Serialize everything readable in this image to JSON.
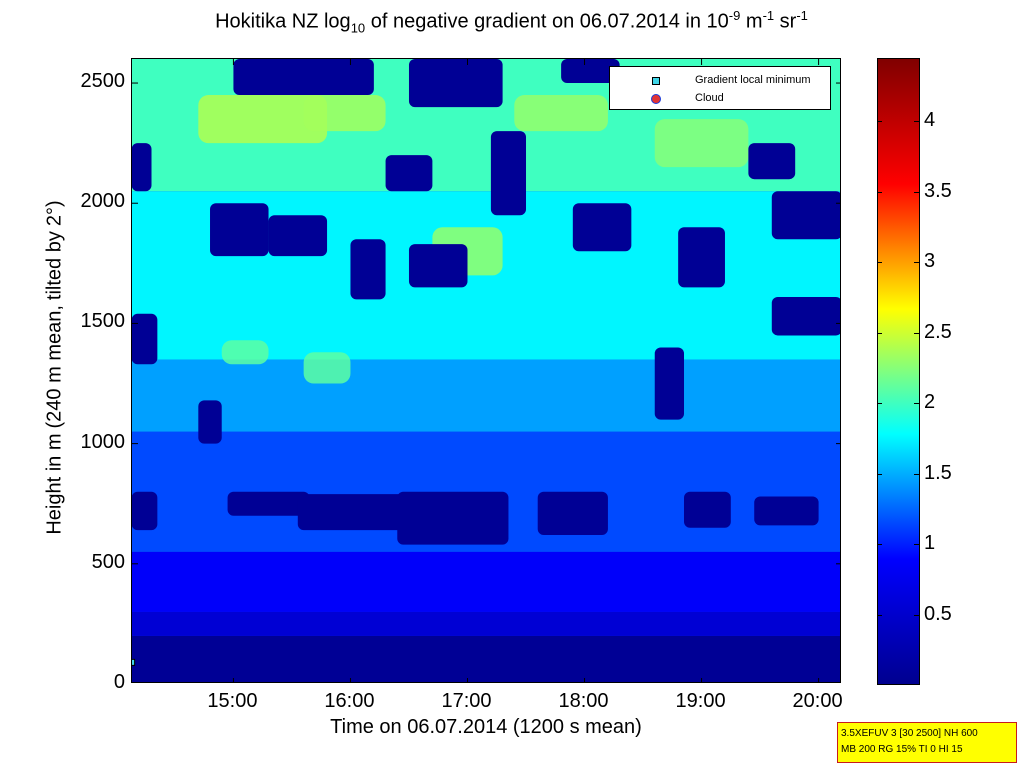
{
  "title": {
    "prefix": "Hokitika NZ log",
    "sub": "10",
    "middle": " of negative gradient on 06.07.2014 in 10",
    "sup1": "-9",
    "unit1": " m",
    "sup2": "-1",
    "unit2": " sr",
    "sup3": "-1"
  },
  "legend": {
    "items": [
      {
        "label": "Gradient local minimum",
        "color": "#3fd6e8"
      },
      {
        "label": "Cloud",
        "color": "#e23434"
      }
    ]
  },
  "infobox": {
    "line1": "3.5XEFUV 3 [30 2500] NH 600",
    "line2": "MB 200 RG 15% TI 0 HI 15"
  },
  "colors": {
    "colormap": [
      "#00008f",
      "#0000ff",
      "#00ffff",
      "#ffff00",
      "#ff0000",
      "#800000"
    ],
    "background": "#0b38e6"
  },
  "chart_data": {
    "type": "heatmap",
    "xlabel": "Time on 06.07.2014 (1200 s mean)",
    "ylabel_parts": [
      "Height in m",
      "(240 m mean,",
      "tilted by",
      "2°)"
    ],
    "xlim": [
      "14:08",
      "20:12"
    ],
    "xtick_labels": [
      "15:00",
      "16:00",
      "17:00",
      "18:00",
      "19:00",
      "20:00"
    ],
    "xtick_values": [
      15.0,
      16.0,
      17.0,
      18.0,
      19.0,
      20.0
    ],
    "ylim": [
      0,
      2600
    ],
    "ytick_values": [
      0,
      500,
      1000,
      1500,
      2000,
      2500
    ],
    "ytick_labels": [
      "0",
      "500",
      "1000",
      "1500",
      "2000",
      "2500"
    ],
    "colorbar": {
      "range": [
        0.0,
        4.45
      ],
      "tick_values": [
        0.5,
        1.0,
        1.5,
        2.0,
        2.5,
        3.0,
        3.5,
        4.0
      ],
      "tick_labels": [
        "0.5",
        "1",
        "1.5",
        "2",
        "2.5",
        "3",
        "3.5",
        "4"
      ]
    },
    "bands": [
      {
        "h0": 0,
        "h1": 200,
        "value": 0.05
      },
      {
        "h0": 200,
        "h1": 300,
        "value": 0.55
      },
      {
        "h0": 300,
        "h1": 550,
        "value": 0.85
      },
      {
        "h0": 550,
        "h1": 1050,
        "value": 1.15
      },
      {
        "h0": 1050,
        "h1": 1350,
        "value": 1.45
      },
      {
        "h0": 1350,
        "h1": 2050,
        "value": 1.75
      },
      {
        "h0": 2050,
        "h1": 2600,
        "value": 2.0
      }
    ],
    "low_patches": [
      {
        "t0": 14.13,
        "t1": 14.35,
        "h0": 640,
        "h1": 800,
        "value": 0.05
      },
      {
        "t0": 14.95,
        "t1": 15.65,
        "h0": 700,
        "h1": 800,
        "value": 0.05
      },
      {
        "t0": 15.55,
        "t1": 16.5,
        "h0": 640,
        "h1": 790,
        "value": 0.05
      },
      {
        "t0": 16.4,
        "t1": 17.35,
        "h0": 580,
        "h1": 800,
        "value": 0.05
      },
      {
        "t0": 17.6,
        "t1": 18.2,
        "h0": 620,
        "h1": 800,
        "value": 0.05
      },
      {
        "t0": 18.85,
        "t1": 19.25,
        "h0": 650,
        "h1": 800,
        "value": 0.05
      },
      {
        "t0": 19.45,
        "t1": 20.0,
        "h0": 660,
        "h1": 780,
        "value": 0.05
      },
      {
        "t0": 14.13,
        "t1": 14.35,
        "h0": 1330,
        "h1": 1540,
        "value": 0.05
      },
      {
        "t0": 14.7,
        "t1": 14.9,
        "h0": 1000,
        "h1": 1180,
        "value": 0.05
      },
      {
        "t0": 18.6,
        "t1": 18.85,
        "h0": 1100,
        "h1": 1400,
        "value": 0.05
      },
      {
        "t0": 19.6,
        "t1": 20.2,
        "h0": 1450,
        "h1": 1610,
        "value": 0.05
      },
      {
        "t0": 14.13,
        "t1": 14.3,
        "h0": 2050,
        "h1": 2250,
        "value": 0.05
      },
      {
        "t0": 14.8,
        "t1": 15.3,
        "h0": 1780,
        "h1": 2000,
        "value": 0.05
      },
      {
        "t0": 15.3,
        "t1": 15.8,
        "h0": 1780,
        "h1": 1950,
        "value": 0.05
      },
      {
        "t0": 16.0,
        "t1": 16.3,
        "h0": 1600,
        "h1": 1850,
        "value": 0.05
      },
      {
        "t0": 16.3,
        "t1": 16.7,
        "h0": 2050,
        "h1": 2200,
        "value": 0.05
      },
      {
        "t0": 16.5,
        "t1": 17.0,
        "h0": 1650,
        "h1": 1830,
        "value": 0.05
      },
      {
        "t0": 17.2,
        "t1": 17.5,
        "h0": 1950,
        "h1": 2300,
        "value": 0.05
      },
      {
        "t0": 17.9,
        "t1": 18.4,
        "h0": 1800,
        "h1": 2000,
        "value": 0.05
      },
      {
        "t0": 18.8,
        "t1": 19.2,
        "h0": 1650,
        "h1": 1900,
        "value": 0.05
      },
      {
        "t0": 19.6,
        "t1": 20.2,
        "h0": 1850,
        "h1": 2050,
        "value": 0.05
      },
      {
        "t0": 15.0,
        "t1": 16.2,
        "h0": 2450,
        "h1": 2600,
        "value": 0.05
      },
      {
        "t0": 16.5,
        "t1": 17.3,
        "h0": 2400,
        "h1": 2600,
        "value": 0.05
      },
      {
        "t0": 17.8,
        "t1": 18.3,
        "h0": 2500,
        "h1": 2600,
        "value": 0.05
      },
      {
        "t0": 19.4,
        "t1": 19.8,
        "h0": 2100,
        "h1": 2250,
        "value": 0.05
      }
    ],
    "high_patches": [
      {
        "t0": 14.7,
        "t1": 15.8,
        "h0": 2250,
        "h1": 2450,
        "value": 2.4
      },
      {
        "t0": 15.6,
        "t1": 16.3,
        "h0": 2300,
        "h1": 2450,
        "value": 2.35
      },
      {
        "t0": 16.7,
        "t1": 17.3,
        "h0": 1700,
        "h1": 1900,
        "value": 2.3
      },
      {
        "t0": 17.4,
        "t1": 18.2,
        "h0": 2300,
        "h1": 2450,
        "value": 2.3
      },
      {
        "t0": 18.6,
        "t1": 19.4,
        "h0": 2150,
        "h1": 2350,
        "value": 2.25
      },
      {
        "t0": 14.9,
        "t1": 15.3,
        "h0": 1330,
        "h1": 1430,
        "value": 2.1
      },
      {
        "t0": 15.6,
        "t1": 16.0,
        "h0": 1250,
        "h1": 1380,
        "value": 2.1
      }
    ],
    "points": [
      {
        "series": "Gradient local minimum",
        "t": 14.13,
        "h": 90
      }
    ]
  }
}
